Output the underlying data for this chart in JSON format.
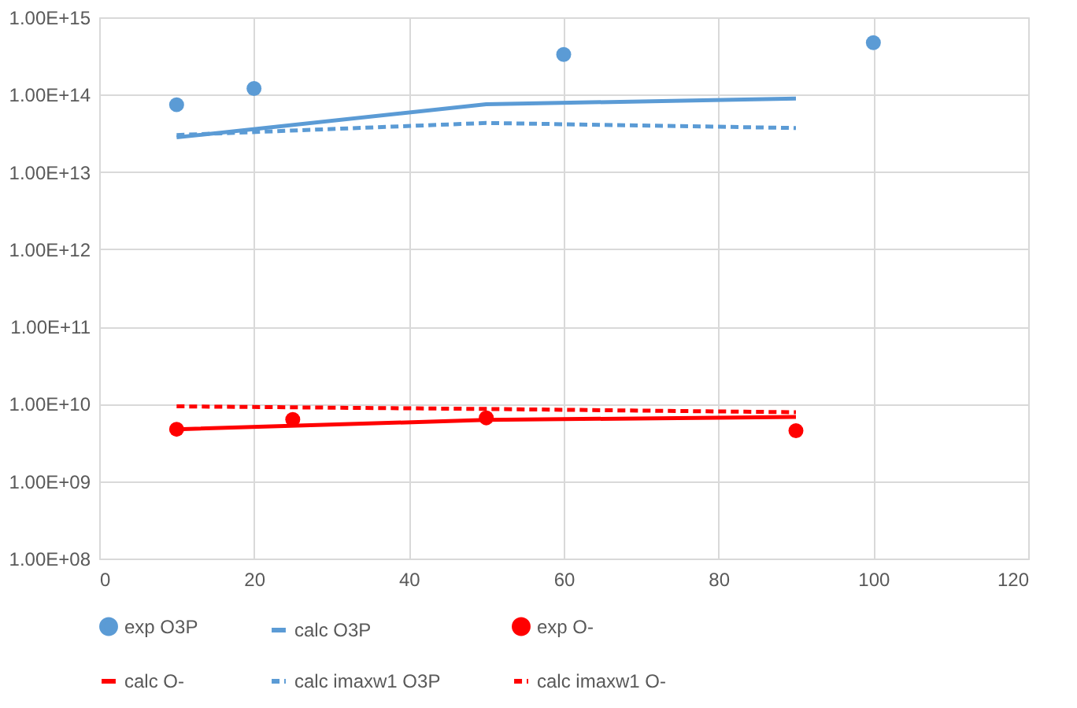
{
  "chart_data": {
    "type": "scatter",
    "log": "y",
    "grid": true,
    "legend": "bottom",
    "xlim": [
      0,
      120
    ],
    "xticks": [
      0,
      20,
      40,
      60,
      80,
      100,
      120
    ],
    "ylim": [
      100000000.0,
      1000000000000000.0
    ],
    "yticks": [
      {
        "value": 100000000.0,
        "label": "1.00E+08"
      },
      {
        "value": 1000000000.0,
        "label": "1.00E+09"
      },
      {
        "value": 10000000000.0,
        "label": "1.00E+10"
      },
      {
        "value": 100000000000.0,
        "label": "1.00E+11"
      },
      {
        "value": 1000000000000.0,
        "label": "1.00E+12"
      },
      {
        "value": 10000000000000.0,
        "label": "1.00E+13"
      },
      {
        "value": 100000000000000.0,
        "label": "1.00E+14"
      },
      {
        "value": 1000000000000000.0,
        "label": "1.00E+15"
      }
    ],
    "series": [
      {
        "name": "exp O3P",
        "marker": "circle",
        "color": "#5b9bd5",
        "x": [
          10,
          20,
          60,
          100
        ],
        "values": [
          74000000000000.0,
          120000000000000.0,
          330000000000000.0,
          470000000000000.0
        ]
      },
      {
        "name": "calc O3P",
        "type": "line",
        "line_style": "solid",
        "marker": "none",
        "color": "#5b9bd5",
        "x": [
          10,
          50,
          90
        ],
        "values": [
          28000000000000.0,
          75000000000000.0,
          89000000000000.0
        ]
      },
      {
        "name": "exp O-",
        "marker": "circle",
        "color": "#ff0000",
        "x": [
          10,
          25,
          50,
          90
        ],
        "values": [
          4700000000.0,
          6300000000.0,
          6600000000.0,
          4500000000.0
        ]
      },
      {
        "name": "calc O-",
        "type": "line",
        "line_style": "solid",
        "marker": "none",
        "color": "#ff0000",
        "x": [
          10,
          50,
          90
        ],
        "values": [
          4700000000.0,
          6200000000.0,
          6800000000.0
        ]
      },
      {
        "name": "calc imaxw1 O3P",
        "type": "line",
        "line_style": "dashed",
        "marker": "none",
        "color": "#5b9bd5",
        "x": [
          10,
          50,
          90
        ],
        "values": [
          30000000000000.0,
          43000000000000.0,
          37000000000000.0
        ]
      },
      {
        "name": "calc imaxw1 O-",
        "type": "line",
        "line_style": "dashed",
        "marker": "none",
        "color": "#ff0000",
        "x": [
          10,
          50,
          90
        ],
        "values": [
          9300000000.0,
          8600000000.0,
          7800000000.0
        ]
      }
    ]
  }
}
